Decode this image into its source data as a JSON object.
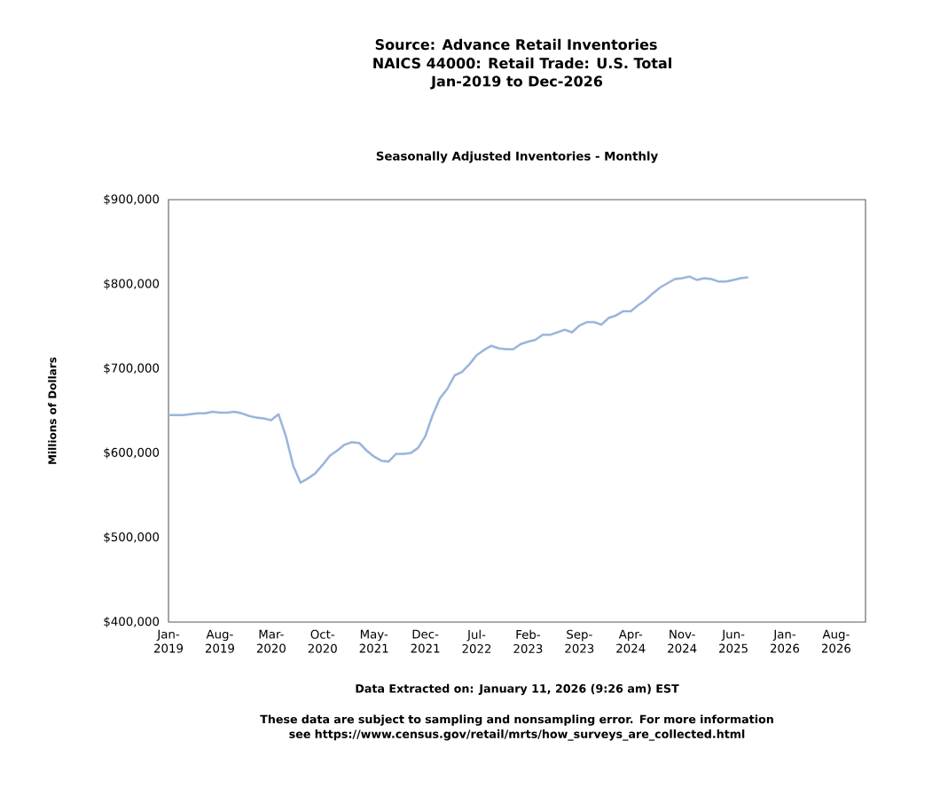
{
  "chart_data": {
    "type": "line",
    "title": "Source: Advance Retail Inventories",
    "subtitle": "Seasonally Adjusted Inventories - Monthly",
    "ylabel": "Millions of Dollars",
    "annotations": [
      "NAICS 44000: Retail Trade: U.S. Total",
      "Jan-2019 to Dec-2026",
      "Data Extracted on: January 11, 2026 (9:26 am) EST",
      "These data are subject to sampling and nonsampling error. For more information see https://www.census.gov/retail/mrts/how_surveys_are_collected.html"
    ],
    "x": [
      "2019-01",
      "2019-02",
      "2019-03",
      "2019-04",
      "2019-05",
      "2019-06",
      "2019-07",
      "2019-08",
      "2019-09",
      "2019-10",
      "2019-11",
      "2019-12",
      "2020-01",
      "2020-02",
      "2020-03",
      "2020-04",
      "2020-05",
      "2020-06",
      "2020-07",
      "2020-08",
      "2020-09",
      "2020-10",
      "2020-11",
      "2020-12",
      "2021-01",
      "2021-02",
      "2021-03",
      "2021-04",
      "2021-05",
      "2021-06",
      "2021-07",
      "2021-08",
      "2021-09",
      "2021-10",
      "2021-11",
      "2021-12",
      "2022-01",
      "2022-02",
      "2022-03",
      "2022-04",
      "2022-05",
      "2022-06",
      "2022-07",
      "2022-08",
      "2022-09",
      "2022-10",
      "2022-11",
      "2022-12",
      "2023-01",
      "2023-02",
      "2023-03",
      "2023-04",
      "2023-05",
      "2023-06",
      "2023-07",
      "2023-08",
      "2023-09",
      "2023-10",
      "2023-11",
      "2023-12",
      "2024-01",
      "2024-02",
      "2024-03",
      "2024-04",
      "2024-05",
      "2024-06",
      "2024-07",
      "2024-08",
      "2024-09",
      "2024-10",
      "2024-11",
      "2024-12",
      "2025-01",
      "2025-02",
      "2025-03",
      "2025-04",
      "2025-05",
      "2025-06",
      "2025-07",
      "2025-08"
    ],
    "series": [
      {
        "color": "#9ab5db",
        "values": [
          645000,
          645000,
          645000,
          646000,
          647000,
          647000,
          649000,
          648000,
          648000,
          649000,
          647000,
          644000,
          642000,
          641000,
          639000,
          646000,
          620000,
          585000,
          565000,
          570000,
          576000,
          586000,
          597000,
          603000,
          610000,
          613000,
          612000,
          603000,
          596000,
          591000,
          590000,
          599000,
          599000,
          600000,
          606000,
          620000,
          645000,
          665000,
          676000,
          692000,
          696000,
          705000,
          716000,
          722000,
          727000,
          724000,
          723000,
          723000,
          729000,
          732000,
          734000,
          740000,
          740000,
          743000,
          746000,
          743000,
          751000,
          755000,
          755000,
          752000,
          760000,
          763000,
          768000,
          768000,
          775000,
          781000,
          789000,
          796000,
          801000,
          806000,
          807000,
          809000,
          805000,
          807000,
          806000,
          803000,
          803000,
          805000,
          807000,
          808000
        ]
      }
    ],
    "xlim": [
      "2019-01",
      "2026-12"
    ],
    "xticks": [
      {
        "value": "2019-01",
        "label": "Jan-2019"
      },
      {
        "value": "2019-08",
        "label": "Aug-2019"
      },
      {
        "value": "2020-03",
        "label": "Mar-2020"
      },
      {
        "value": "2020-10",
        "label": "Oct-2020"
      },
      {
        "value": "2021-05",
        "label": "May-2021"
      },
      {
        "value": "2021-12",
        "label": "Dec-2021"
      },
      {
        "value": "2022-07",
        "label": "Jul-2022"
      },
      {
        "value": "2023-02",
        "label": "Feb-2023"
      },
      {
        "value": "2023-09",
        "label": "Sep-2023"
      },
      {
        "value": "2024-04",
        "label": "Apr-2024"
      },
      {
        "value": "2024-11",
        "label": "Nov-2024"
      },
      {
        "value": "2025-06",
        "label": "Jun-2025"
      },
      {
        "value": "2026-01",
        "label": "Jan-2026"
      },
      {
        "value": "2026-08",
        "label": "Aug-2026"
      }
    ],
    "ylim": [
      400000,
      900000
    ],
    "yticks": [
      {
        "value": 400000,
        "label": "$400,000"
      },
      {
        "value": 500000,
        "label": "$500,000"
      },
      {
        "value": 600000,
        "label": "$600,000"
      },
      {
        "value": 700000,
        "label": "$700,000"
      },
      {
        "value": 800000,
        "label": "$800,000"
      },
      {
        "value": 900000,
        "label": "$900,000"
      }
    ],
    "grid": false,
    "marker": "none",
    "line_style": "solid"
  }
}
